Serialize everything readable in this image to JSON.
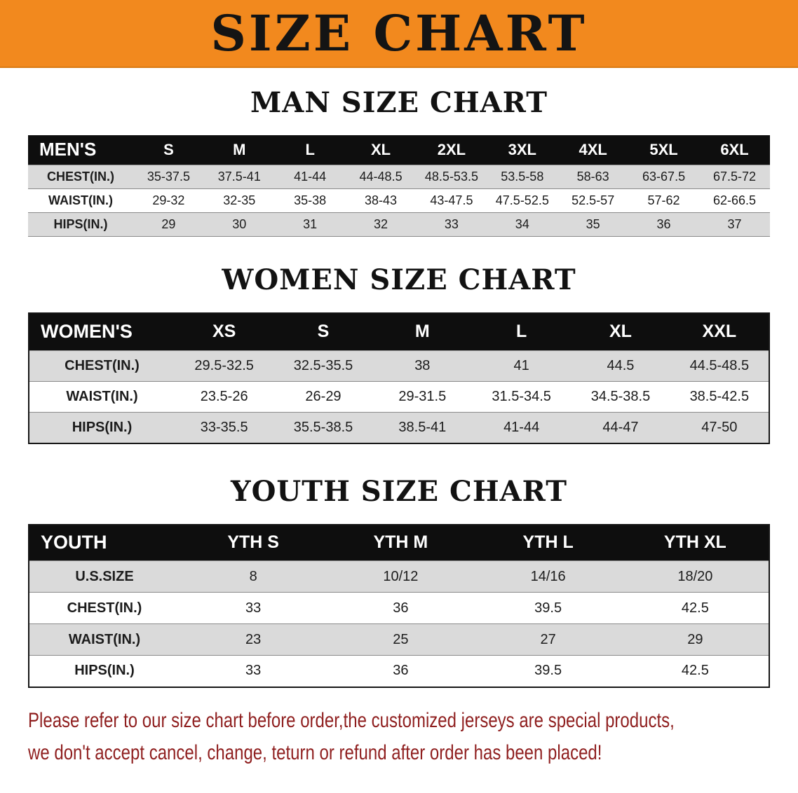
{
  "banner": {
    "title": "SIZE CHART"
  },
  "tables": {
    "men": {
      "title": "MAN SIZE CHART",
      "header": [
        "MEN'S",
        "S",
        "M",
        "L",
        "XL",
        "2XL",
        "3XL",
        "4XL",
        "5XL",
        "6XL"
      ],
      "rows": [
        [
          "CHEST(IN.)",
          "35-37.5",
          "37.5-41",
          "41-44",
          "44-48.5",
          "48.5-53.5",
          "53.5-58",
          "58-63",
          "63-67.5",
          "67.5-72"
        ],
        [
          "WAIST(IN.)",
          "29-32",
          "32-35",
          "35-38",
          "38-43",
          "43-47.5",
          "47.5-52.5",
          "52.5-57",
          "57-62",
          "62-66.5"
        ],
        [
          "HIPS(IN.)",
          "29",
          "30",
          "31",
          "32",
          "33",
          "34",
          "35",
          "36",
          "37"
        ]
      ]
    },
    "women": {
      "title": "WOMEN SIZE CHART",
      "header": [
        "WOMEN'S",
        "XS",
        "S",
        "M",
        "L",
        "XL",
        "XXL"
      ],
      "rows": [
        [
          "CHEST(IN.)",
          "29.5-32.5",
          "32.5-35.5",
          "38",
          "41",
          "44.5",
          "44.5-48.5"
        ],
        [
          "WAIST(IN.)",
          "23.5-26",
          "26-29",
          "29-31.5",
          "31.5-34.5",
          "34.5-38.5",
          "38.5-42.5"
        ],
        [
          "HIPS(IN.)",
          "33-35.5",
          "35.5-38.5",
          "38.5-41",
          "41-44",
          "44-47",
          "47-50"
        ]
      ]
    },
    "youth": {
      "title": "YOUTH SIZE CHART",
      "header": [
        "YOUTH",
        "YTH S",
        "YTH M",
        "YTH L",
        "YTH XL"
      ],
      "rows": [
        [
          "U.S.SIZE",
          "8",
          "10/12",
          "14/16",
          "18/20"
        ],
        [
          "CHEST(IN.)",
          "33",
          "36",
          "39.5",
          "42.5"
        ],
        [
          "WAIST(IN.)",
          "23",
          "25",
          "27",
          "29"
        ],
        [
          "HIPS(IN.)",
          "33",
          "36",
          "39.5",
          "42.5"
        ]
      ]
    }
  },
  "footer": {
    "line1": "Please refer to our size chart before order,the customized jerseys are special products,",
    "line2": "we don't accept cancel, change, teturn or refund after order has been placed!"
  },
  "colors": {
    "banner_bg": "#F2891E",
    "table_header_bg": "#0E0E0E",
    "row_shade": "#DADADA",
    "note_text": "#8F1F1F"
  }
}
